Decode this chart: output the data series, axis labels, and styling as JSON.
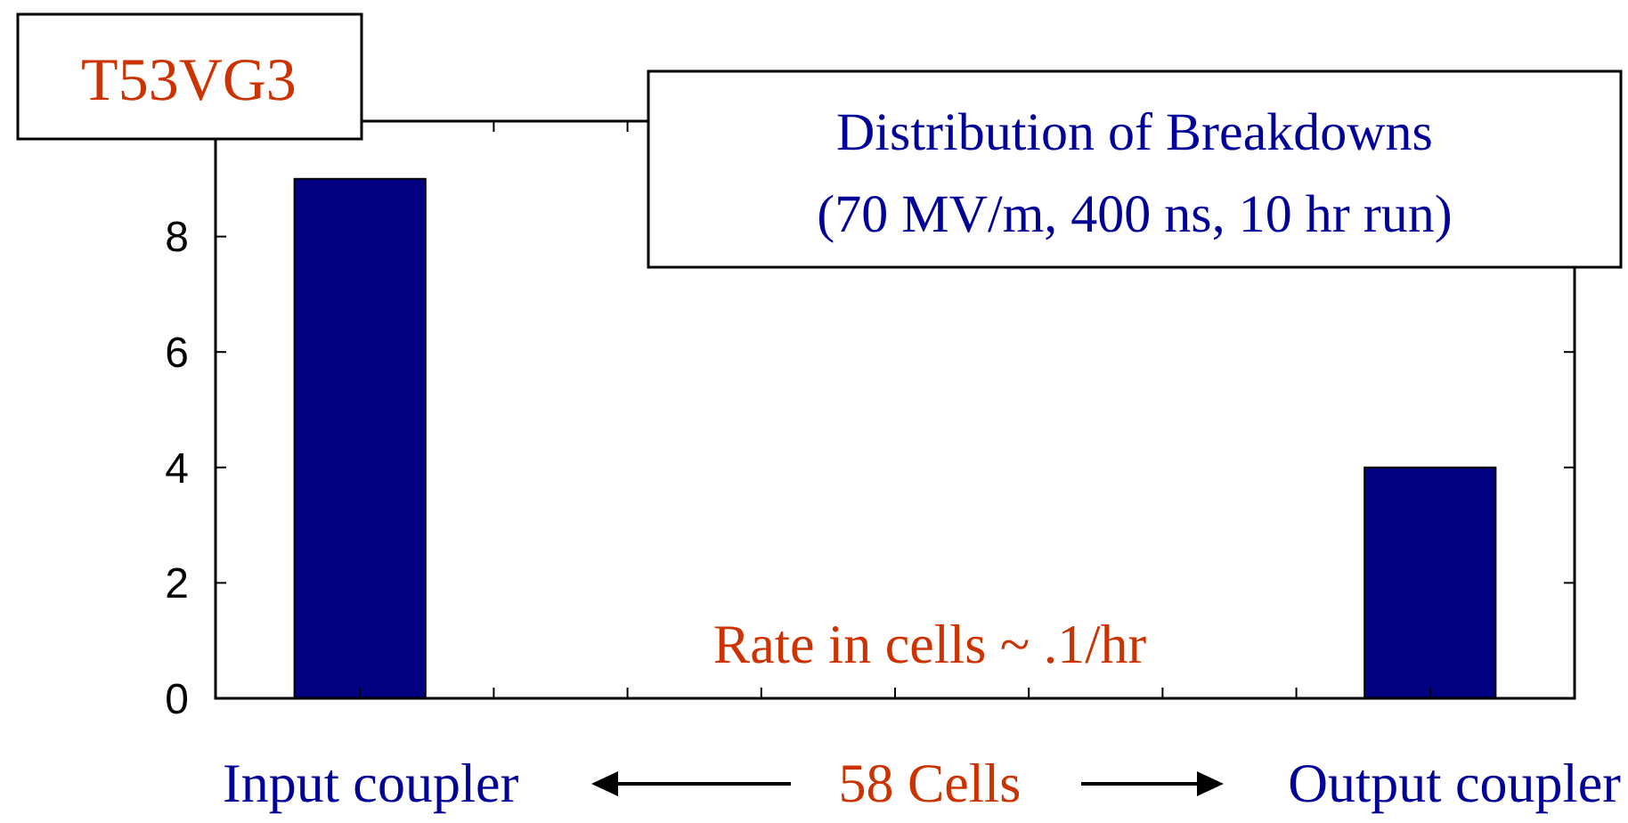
{
  "chart_data": {
    "type": "bar",
    "title": "Distribution of Breakdowns",
    "subtitle": "(70 MV/m, 400 ns, 10 hr run)",
    "categories": [
      null,
      null
    ],
    "values": [
      9,
      4
    ],
    "color": "#000080",
    "ylim": [
      0,
      10
    ],
    "yticks": [
      0,
      2,
      4,
      6,
      8
    ],
    "grid": false,
    "annotations": [
      "T53VG3",
      "Rate in cells  ~  .1/hr",
      "Input coupler",
      "58 Cells",
      "Output coupler"
    ]
  }
}
